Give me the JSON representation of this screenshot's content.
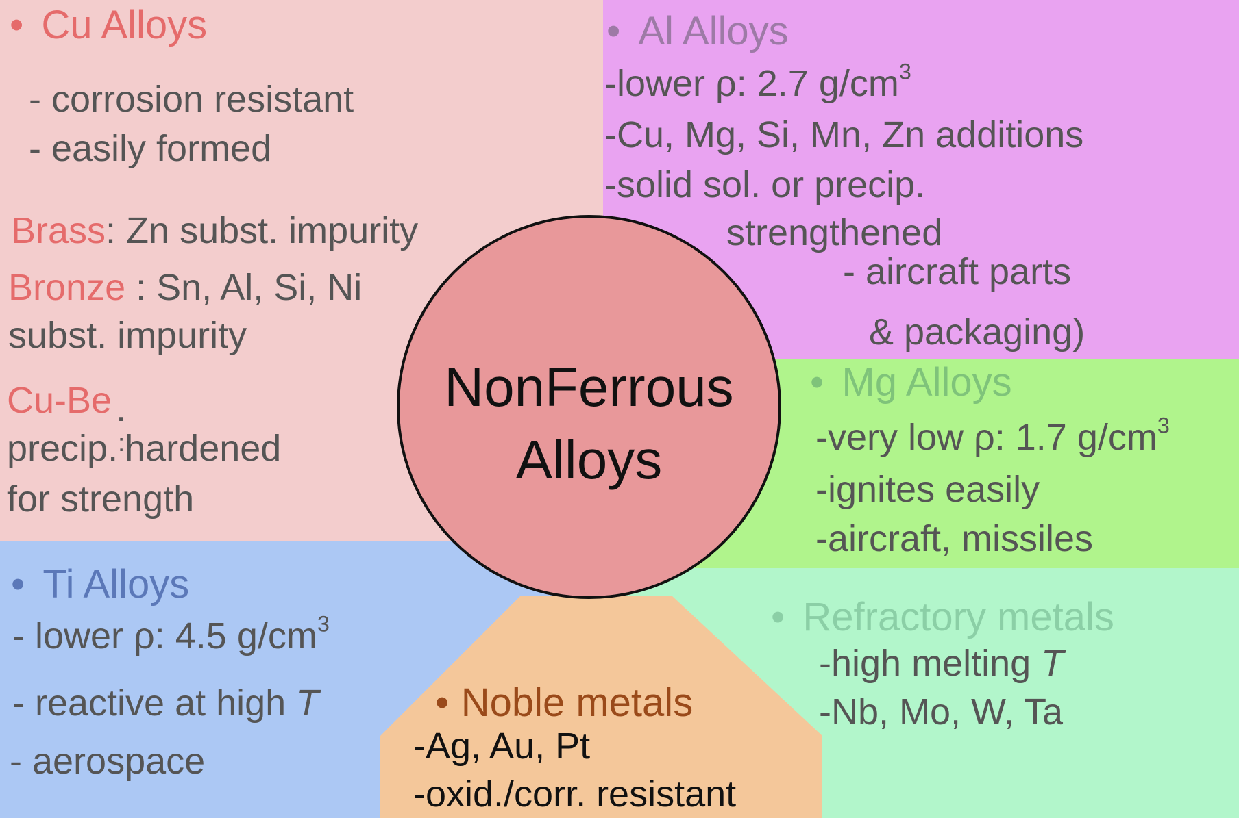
{
  "center": {
    "line1": "NonFerrous",
    "line2": "Alloys"
  },
  "cu": {
    "bullet": "•",
    "heading": "Cu Alloys",
    "prop1": "- corrosion resistant",
    "prop2": "- easily formed",
    "brass_label": "Brass",
    "brass_text": ": Zn subst. impurity",
    "bronze_label": "Bronze",
    "bronze_text": " : Sn, Al, Si, Ni",
    "bronze_line2": "subst. impurity",
    "cube_label": "Cu-Be",
    "cube_dot": ".",
    "cube_line2a": "precip.",
    "cube_colon": ":",
    "cube_line2b": "hardened",
    "cube_line3": "for strength"
  },
  "al": {
    "bullet": "•",
    "heading": "Al Alloys",
    "line1": "-lower  ρ:  2.7 g/cm",
    "line1_sup": "3",
    "line2": "-Cu, Mg, Si, Mn, Zn additions",
    "line3": "-solid sol. or precip.",
    "line4": "strengthened",
    "line5": "- aircraft parts",
    "line6": "& packaging)"
  },
  "mg": {
    "bullet": "•",
    "heading": "Mg Alloys",
    "line1": "-very low  ρ: 1.7 g/cm",
    "line1_sup": "3",
    "line2": "-ignites easily",
    "line3": "-aircraft, missiles"
  },
  "ti": {
    "bullet": "•",
    "heading": "Ti Alloys",
    "line1": "- lower ρ:  4.5 g/cm",
    "line1_sup": "3",
    "line2": "- reactive at high ",
    "line2_t": "T",
    "line3": "- aerospace"
  },
  "noble": {
    "bullet": "•",
    "heading": "Noble metals",
    "line1": "-Ag, Au, Pt",
    "line2": "-oxid./corr. resistant"
  },
  "refractory": {
    "bullet": "•",
    "heading": "Refractory metals",
    "line1": "-high melting ",
    "line1_t": "T",
    "line2": "-Nb, Mo, W, Ta"
  },
  "colors": {
    "cu_bg": "#f3cdcd",
    "al_bg": "#e9a3f1",
    "mg_bg": "#b0f48c",
    "ti_bg": "#acc8f4",
    "noble_bg": "#f4c79a",
    "refractory_bg": "#b2f6cb",
    "center_fill": "#e8989a",
    "cu_heading": "#e56b6b",
    "al_heading": "#9d7aa6",
    "mg_heading": "#7fc37a",
    "ti_heading": "#5b78b8",
    "noble_heading": "#9a4a1a",
    "refractory_heading": "#8bcfa6"
  }
}
